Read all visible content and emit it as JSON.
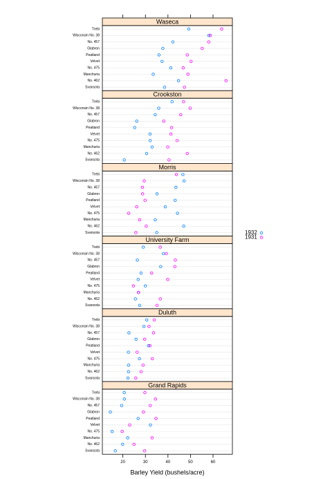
{
  "chart_data": {
    "type": "dotplot",
    "xlabel": "Barley Yield (bushels/acre)",
    "categories": [
      "Trebi",
      "Wisconsin No. 38",
      "No. 457",
      "Glabron",
      "Peatland",
      "Velvet",
      "No. 475",
      "Manchuria",
      "No. 462",
      "Svansota"
    ],
    "series": [
      {
        "name": "1932",
        "color": "#0080ff"
      },
      {
        "name": "1931",
        "color": "#ff00ff"
      }
    ],
    "panels": [
      {
        "title": "Waseca",
        "series": [
          {
            "values": [
              49.2333,
              58.16667,
              42.2,
              37.73333,
              36.03333,
              37.4,
              41.26667,
              33.46667,
              44.7,
              38.5
            ]
          },
          {
            "values": [
              63.8333,
              58.8,
              58.1,
              55.2,
              48.56666,
              50.23333,
              46.76667,
              48.86667,
              65.7667,
              47.33333
            ]
          }
        ]
      },
      {
        "title": "Crookston",
        "series": [
          {
            "values": [
              41.83333,
              35.9,
              34.33333,
              26.16667,
              25.23333,
              32.06666,
              32.13333,
              32.96667,
              30.53333,
              20.63333
            ]
          },
          {
            "values": [
              46.93333,
              49.86667,
              45.66667,
              38.13333,
              41.6,
              41.33333,
              44.1,
              39.93333,
              48.56666,
              40.46667
            ]
          }
        ]
      },
      {
        "title": "Morris",
        "series": [
          {
            "values": [
              46.63333,
              47.16667,
              43.53334,
              35.13333,
              43.2,
              38.83333,
              44.23333,
              34.36666,
              47.0,
              35.03333
            ]
          },
          {
            "values": [
              43.76667,
              29.46667,
              28.7,
              28.76667,
              29.86667,
              26.13333,
              22.6,
              27.43334,
              30.36667,
              25.76667
            ]
          }
        ]
      },
      {
        "title": "University Farm",
        "series": [
          {
            "values": [
              29.06667,
              38.0,
              26.43334,
              36.8,
              28.06667,
              26.8,
              30.0,
              26.9,
              25.56667,
              27.43334
            ]
          },
          {
            "values": [
              36.56666,
              39.3,
              43.26667,
              43.06666,
              32.76667,
              39.9,
              24.66667,
              27.0,
              36.6,
              35.13333
            ]
          }
        ]
      },
      {
        "title": "Duluth",
        "series": [
          {
            "values": [
              30.6,
              29.33333,
              22.7,
              25.86667,
              31.36667,
              22.46667,
              27.36667,
              22.56667,
              22.5,
              22.23333
            ]
          },
          {
            "values": [
              33.93333,
              31.6,
              33.6,
              29.66667,
              32.0,
              26.3,
              33.06666,
              28.96667,
              28.1,
              25.7
            ]
          }
        ]
      },
      {
        "title": "Grand Rapids",
        "series": [
          {
            "values": [
              20.63333,
              20.66667,
              19.46667,
              14.43333,
              26.76667,
              32.23333,
              15.23333,
              22.13333,
              19.9,
              16.63333
            ]
          },
          {
            "values": [
              29.76667,
              34.46667,
              32.16667,
              29.13333,
              34.7,
              23.03333,
              19.7,
              32.96667,
              24.93334,
              29.66667
            ]
          }
        ]
      }
    ],
    "xlim": [
      10.9,
      68.6
    ],
    "xticks": [
      20,
      30,
      40,
      50,
      60
    ],
    "grid": true
  }
}
